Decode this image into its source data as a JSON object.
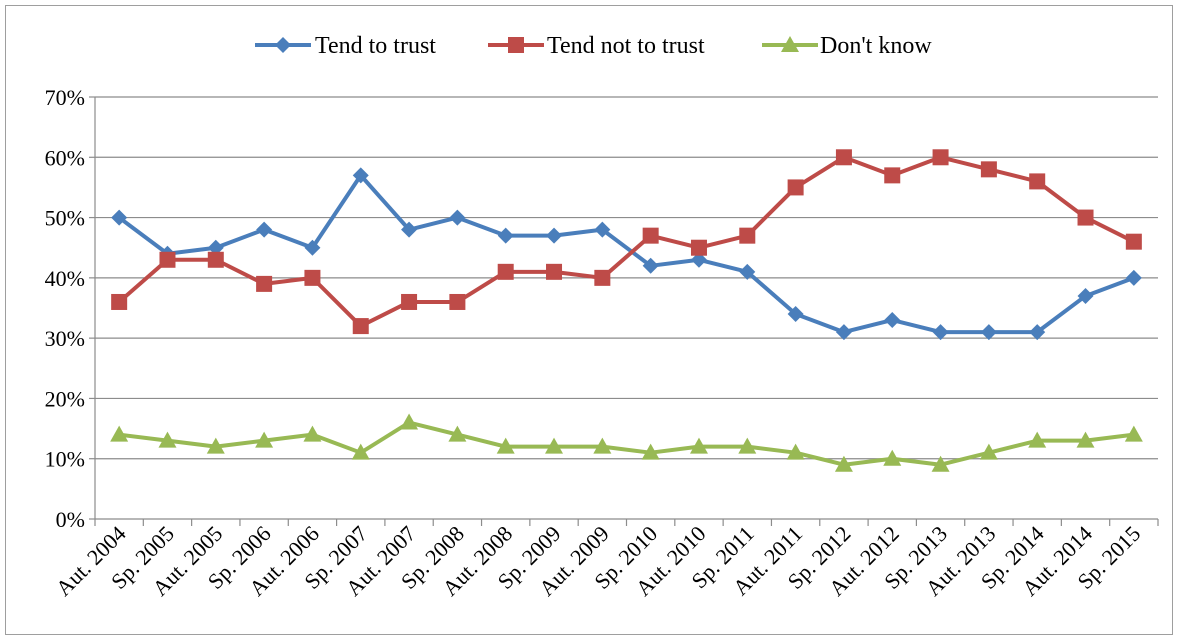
{
  "chart_data": {
    "type": "line",
    "title": "",
    "xlabel": "",
    "ylabel": "",
    "ylim": [
      0,
      70
    ],
    "y_ticks": [
      0,
      10,
      20,
      30,
      40,
      50,
      60,
      70
    ],
    "y_tick_format": "percent",
    "grid": "horizontal",
    "legend_position": "top",
    "categories": [
      "Aut. 2004",
      "Sp. 2005",
      "Aut. 2005",
      "Sp. 2006",
      "Aut. 2006",
      "Sp. 2007",
      "Aut. 2007",
      "Sp. 2008",
      "Aut. 2008",
      "Sp. 2009",
      "Aut. 2009",
      "Sp. 2010",
      "Aut. 2010",
      "Sp. 2011",
      "Aut. 2011",
      "Sp. 2012",
      "Aut. 2012",
      "Sp. 2013",
      "Aut. 2013",
      "Sp. 2014",
      "Aut. 2014",
      "Sp. 2015"
    ],
    "series": [
      {
        "name": "Tend to trust",
        "color": "#4a7ebb",
        "marker": "diamond",
        "values": [
          50,
          44,
          45,
          48,
          45,
          57,
          48,
          50,
          47,
          47,
          48,
          42,
          43,
          41,
          34,
          31,
          33,
          31,
          31,
          31,
          37,
          40
        ]
      },
      {
        "name": "Tend not to trust",
        "color": "#be4b48",
        "marker": "square",
        "values": [
          36,
          43,
          43,
          39,
          40,
          32,
          36,
          36,
          41,
          41,
          40,
          47,
          45,
          47,
          55,
          60,
          57,
          60,
          58,
          56,
          50,
          46
        ]
      },
      {
        "name": "Don't know",
        "color": "#98b954",
        "marker": "triangle",
        "values": [
          14,
          13,
          12,
          13,
          14,
          11,
          16,
          14,
          12,
          12,
          12,
          11,
          12,
          12,
          11,
          9,
          10,
          9,
          11,
          13,
          13,
          14
        ]
      }
    ]
  }
}
